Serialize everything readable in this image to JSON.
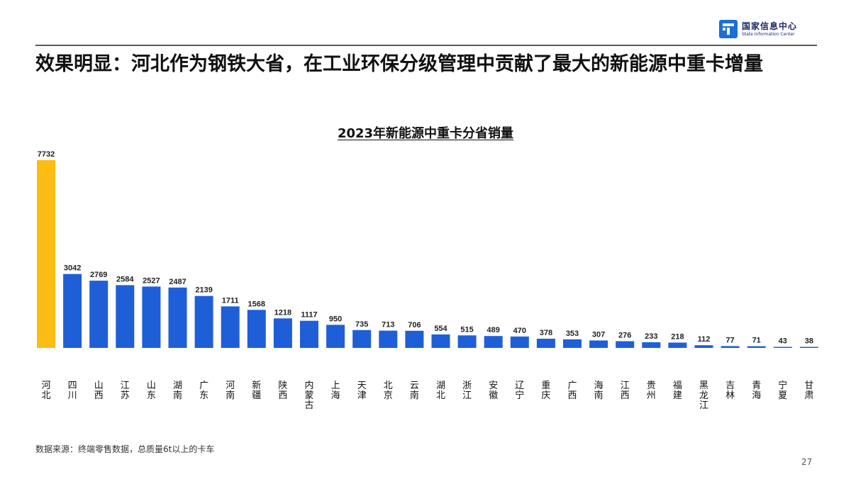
{
  "logo": {
    "name_cn": "国家信息中心",
    "name_en": "State Information Center"
  },
  "slide": {
    "title": "效果明显：河北作为钢铁大省，在工业环保分级管理中贡献了最大的新能源中重卡增量",
    "source": "数据来源：终端零售数据，总质量6t以上的卡车",
    "page_number": "27"
  },
  "colors": {
    "highlight_bar": "#FBBD13",
    "bar": "#1E5FD8",
    "brand_blue": "#1b6fd6"
  },
  "chart_data": {
    "type": "bar",
    "title": "2023年新能源中重卡分省销量",
    "xlabel": "",
    "ylabel": "",
    "ylim": [
      0,
      7732
    ],
    "grid": false,
    "categories": [
      "河北",
      "四川",
      "山西",
      "江苏",
      "山东",
      "湖南",
      "广东",
      "河南",
      "新疆",
      "陕西",
      "内蒙古",
      "上海",
      "天津",
      "北京",
      "云南",
      "湖北",
      "浙江",
      "安徽",
      "辽宁",
      "重庆",
      "广西",
      "海南",
      "江西",
      "贵州",
      "福建",
      "黑龙江",
      "吉林",
      "青海",
      "宁夏",
      "甘肃"
    ],
    "values": [
      7732,
      3042,
      2769,
      2584,
      2527,
      2487,
      2139,
      1711,
      1568,
      1218,
      1117,
      950,
      735,
      713,
      706,
      554,
      515,
      489,
      470,
      378,
      353,
      307,
      276,
      233,
      218,
      112,
      77,
      71,
      43,
      38
    ],
    "highlight": [
      "河北"
    ]
  }
}
